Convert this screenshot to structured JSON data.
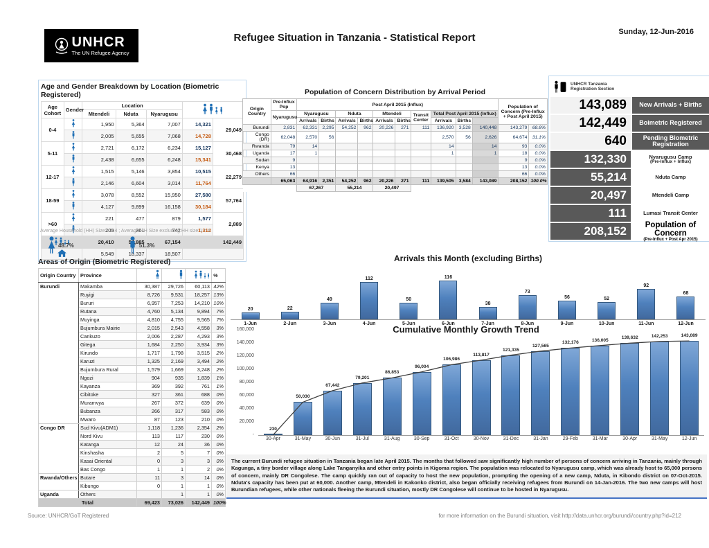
{
  "header": {
    "logo_line1": "UNHCR",
    "logo_line2": "The UN Refugee Agency",
    "title": "Refugee Situation in Tanzania -  Statistical Report",
    "date": "Sunday, 12-Jun-2016"
  },
  "colors": {
    "bar_blue": "#4F81BD",
    "icon_blue": "#1F6FB5",
    "dark_box": "#595959",
    "accent_blue": "#4472C4",
    "shade_gray": "#D9D9D9"
  },
  "age_gender": {
    "title": "Age and Gender Breakdown by Location (Biometric Registered)",
    "col_headers": {
      "age": "Age Cohort",
      "gender": "Gender",
      "location": "Location",
      "mtendeli": "Mtendeli",
      "nduta": "Nduta",
      "nyarugusu": "Nyarugusu"
    },
    "rows": [
      {
        "cohort": "0-4",
        "gender": "female",
        "mtendeli": "1,950",
        "nduta": "5,364",
        "nyarugusu": "7,007",
        "subtotal": "14,321",
        "total": "29,049"
      },
      {
        "cohort": "0-4",
        "gender": "male",
        "mtendeli": "2,005",
        "nduta": "5,655",
        "nyarugusu": "7,068",
        "subtotal": "14,728"
      },
      {
        "cohort": "5-11",
        "gender": "female",
        "mtendeli": "2,721",
        "nduta": "6,172",
        "nyarugusu": "6,234",
        "subtotal": "15,127",
        "total": "30,468"
      },
      {
        "cohort": "5-11",
        "gender": "male",
        "mtendeli": "2,438",
        "nduta": "6,655",
        "nyarugusu": "6,248",
        "subtotal": "15,341"
      },
      {
        "cohort": "12-17",
        "gender": "female",
        "mtendeli": "1,515",
        "nduta": "5,146",
        "nyarugusu": "3,854",
        "subtotal": "10,515",
        "total": "22,279"
      },
      {
        "cohort": "12-17",
        "gender": "male",
        "mtendeli": "2,146",
        "nduta": "6,604",
        "nyarugusu": "3,014",
        "subtotal": "11,764"
      },
      {
        "cohort": "18-59",
        "gender": "female",
        "mtendeli": "3,078",
        "nduta": "8,552",
        "nyarugusu": "15,950",
        "subtotal": "27,580",
        "total": "57,764"
      },
      {
        "cohort": "18-59",
        "gender": "male",
        "mtendeli": "4,127",
        "nduta": "9,899",
        "nyarugusu": "16,158",
        "subtotal": "30,184"
      },
      {
        "cohort": ">60",
        "gender": "female",
        "mtendeli": "221",
        "nduta": "477",
        "nyarugusu": "879",
        "subtotal": "1,577",
        "total": "2,889"
      },
      {
        "cohort": ">60",
        "gender": "male",
        "mtendeli": "209",
        "nduta": "361",
        "nyarugusu": "742",
        "subtotal": "1,312"
      }
    ],
    "totals": {
      "mtendeli": "20,410",
      "nduta": "54,885",
      "nyarugusu": "67,154",
      "grand": "142,449"
    },
    "households": {
      "mtendeli": "5,549",
      "nduta": "18,337",
      "nyarugusu": "18,507"
    },
    "hh_note": "Average Household (HH) Size = 3.4 ; Average HH Size excluding HH size 1 = 4",
    "female_pct": "48.7%",
    "male_pct": "51.3%"
  },
  "arrival_period": {
    "title": "Population of Concern Distribution by  Arrival Period",
    "headers": {
      "origin": "Origin Country",
      "pre": "Pre-Influx Pop",
      "pre_sub": "Nyarugusu",
      "post": "Post April 2015 (Influx)",
      "nyarugusu": "Nyarugusu",
      "nduta": "Nduta",
      "mtendeli": "Mtendeli",
      "transit": "Transit Center",
      "total_post": "Total Post April 2015 (Influx)",
      "arrivals": "Arrivals",
      "births": "Births",
      "poc": "Population of Concern (Pre-Influx + Post April 2015)"
    },
    "rows": [
      [
        "Burundi",
        "2,831",
        "62,331",
        "2,295",
        "54,252",
        "962",
        "20,226",
        "271",
        "111",
        "136,920",
        "3,528",
        "140,448",
        "143,279",
        "68.8%"
      ],
      [
        "Congo (DR)",
        "62,048",
        "2,570",
        "56",
        "",
        "",
        "",
        "",
        "",
        "2,570",
        "56",
        "2,626",
        "64,674",
        "31.1%"
      ],
      [
        "Rwanda",
        "79",
        "14",
        "",
        "",
        "",
        "",
        "",
        "",
        "14",
        "",
        "14",
        "93",
        "0.0%"
      ],
      [
        "Uganda",
        "17",
        "1",
        "",
        "",
        "",
        "",
        "",
        "",
        "1",
        "",
        "1",
        "18",
        "0.0%"
      ],
      [
        "Sudan",
        "9",
        "",
        "",
        "",
        "",
        "",
        "",
        "",
        "",
        "",
        "",
        "9",
        "0.0%"
      ],
      [
        "Kenya",
        "13",
        "",
        "",
        "",
        "",
        "",
        "",
        "",
        "",
        "",
        "",
        "13",
        "0.0%"
      ],
      [
        "Others",
        "66",
        "",
        "",
        "",
        "",
        "",
        "",
        "",
        "",
        "",
        "",
        "66",
        "0.0%"
      ]
    ],
    "total_row": [
      "",
      "65,063",
      "64,916",
      "2,351",
      "54,252",
      "962",
      "20,226",
      "271",
      "111",
      "139,505",
      "3,584",
      "143,089",
      "208,152",
      "100.0%"
    ],
    "camp_totals": {
      "nyarugusu": "67,267",
      "nduta": "55,214",
      "mtendeli": "20,497"
    }
  },
  "key_figures": {
    "org_line1": "UNHCR Tanzania",
    "org_line2": "Registration Section",
    "items": [
      {
        "value": "143,089",
        "label": "New Arrivals + Births",
        "sublabel": "",
        "variant": "top"
      },
      {
        "value": "142,449",
        "label": "Boimetric Registered",
        "sublabel": "",
        "variant": "top"
      },
      {
        "value": "640",
        "label": "Pending Biometric Registration",
        "sublabel": "",
        "variant": "top"
      },
      {
        "value": "132,330",
        "label": "Nyarugusu Camp",
        "sublabel": "(Pre-Influx + Influx)",
        "variant": "camp"
      },
      {
        "value": "55,214",
        "label": "Nduta Camp",
        "sublabel": "",
        "variant": "camp"
      },
      {
        "value": "20,497",
        "label": "Mtendeli Camp",
        "sublabel": "",
        "variant": "camp"
      },
      {
        "value": "111",
        "label": "Lumasi Transit Center",
        "sublabel": "",
        "variant": "camp"
      },
      {
        "value": "208,152",
        "label": "Population of Concern",
        "sublabel": "(Pre-Influx + Post Apr 2015)",
        "variant": "poc"
      }
    ]
  },
  "areas_of_origin": {
    "title": "Areas of Origin (Biometric Registered)",
    "headers": {
      "country": "Origin Country",
      "province": "Province",
      "pct": "%"
    },
    "groups": [
      {
        "country": "Burundi",
        "rows": [
          [
            "Makamba",
            "30,387",
            "29,726",
            "60,113",
            "42%"
          ],
          [
            "Ruyigi",
            "8,726",
            "9,531",
            "18,257",
            "13%"
          ],
          [
            "Bururi",
            "6,957",
            "7,253",
            "14,210",
            "10%"
          ],
          [
            "Rutana",
            "4,760",
            "5,134",
            "9,894",
            "7%"
          ],
          [
            "Muyinga",
            "4,810",
            "4,755",
            "9,565",
            "7%"
          ],
          [
            "Bujumbura Mairie",
            "2,015",
            "2,543",
            "4,558",
            "3%"
          ],
          [
            "Cankuzo",
            "2,006",
            "2,287",
            "4,293",
            "3%"
          ],
          [
            "Gitega",
            "1,684",
            "2,250",
            "3,934",
            "3%"
          ],
          [
            "Kirundo",
            "1,717",
            "1,798",
            "3,515",
            "2%"
          ],
          [
            "Karuzi",
            "1,325",
            "2,169",
            "3,494",
            "2%"
          ],
          [
            "Bujumbura Rural",
            "1,579",
            "1,669",
            "3,248",
            "2%"
          ],
          [
            "Ngozi",
            "904",
            "935",
            "1,839",
            "1%"
          ],
          [
            "Kayanza",
            "369",
            "392",
            "761",
            "1%"
          ],
          [
            "Cibitoke",
            "327",
            "361",
            "688",
            "0%"
          ],
          [
            "Muramvya",
            "267",
            "372",
            "639",
            "0%"
          ],
          [
            "Bubanza",
            "266",
            "317",
            "583",
            "0%"
          ],
          [
            "Mwaro",
            "87",
            "123",
            "210",
            "0%"
          ]
        ]
      },
      {
        "country": "Congo DR",
        "rows": [
          [
            "Sud Kivu(ADM1)",
            "1,118",
            "1,236",
            "2,354",
            "2%"
          ],
          [
            "Nord Kivu",
            "113",
            "117",
            "230",
            "0%"
          ],
          [
            "Katanga",
            "12",
            "24",
            "36",
            "0%"
          ],
          [
            "Kinshasha",
            "2",
            "5",
            "7",
            "0%"
          ],
          [
            "Kasai Oriental",
            "0",
            "3",
            "3",
            "0%"
          ],
          [
            "Bas Congo",
            "1",
            "1",
            "2",
            "0%"
          ]
        ]
      },
      {
        "country": "Rwanda/Others",
        "rows": [
          [
            "Butare",
            "11",
            "3",
            "14",
            "0%"
          ],
          [
            "Kibungo",
            "0",
            "1",
            "1",
            "0%"
          ]
        ]
      },
      {
        "country": "Uganda",
        "rows": [
          [
            "Others",
            "",
            "1",
            "1",
            "0%"
          ]
        ]
      }
    ],
    "total_row": [
      "Total",
      "69,423",
      "73,026",
      "142,449",
      "100%"
    ]
  },
  "chart_data": [
    {
      "type": "bar",
      "title": "Arrivals this Month (excluding Births)",
      "categories": [
        "1-Jun",
        "2-Jun",
        "3-Jun",
        "4-Jun",
        "5-Jun",
        "6-Jun",
        "7-Jun",
        "8-Jun",
        "9-Jun",
        "10-Jun",
        "11-Jun",
        "12-Jun"
      ],
      "values": [
        20,
        22,
        49,
        112,
        50,
        116,
        38,
        73,
        56,
        52,
        92,
        68
      ],
      "xlabel": "",
      "ylabel": "",
      "ylim": [
        0,
        125
      ],
      "grid": false,
      "legend": "none",
      "data_labels": true
    },
    {
      "type": "bar",
      "title": "Cumulative Monthly Growth Trend",
      "categories": [
        "30-Apr",
        "31-May",
        "30-Jun",
        "31-Jul",
        "31-Aug",
        "30-Sep",
        "31-Oct",
        "30-Nov",
        "31-Dec",
        "31-Jan",
        "29-Feb",
        "31-Mar",
        "30-Apr",
        "31-May",
        "12-Jun"
      ],
      "values": [
        230,
        50030,
        67442,
        79201,
        86853,
        96004,
        106986,
        113817,
        121335,
        127565,
        132176,
        136005,
        139632,
        142253,
        143089
      ],
      "labels": [
        "230",
        "50,030",
        "67,442",
        "79,201",
        "86,853",
        "96,004",
        "106,986",
        "113,817",
        "121,335",
        "127,565",
        "132,176",
        "136,005",
        "139,632",
        "142,253",
        "143,089"
      ],
      "yticks": [
        "160,000",
        "140,000",
        "120,000",
        "100,000",
        "80,000",
        "60,000",
        "40,000",
        "20,000",
        "-"
      ],
      "xlabel": "",
      "ylabel": "",
      "ylim": [
        0,
        160000
      ],
      "grid": false,
      "legend": "none",
      "trendline": true,
      "data_labels": true
    }
  ],
  "summary_text": "The current Burundi refugee situation in Tanzania began late April 2015. The months that followed saw significantly high number of persons of concern arriving in Tanzania, mainly through Kagunga, a tiny border village along Lake Tanganyika and other entry points in Kigoma region. The population was relocated to Nyarugusu camp, which was already host to 65,000 persons of concern, mainly DR Congolese. The camp quickly ran out of capacity to host the new population, prompting the opening of a new camp, Nduta, in Kibondo district on 07-Oct-2015. Nduta's capacity has been put at 60,000. Another camp, Mtendeli in Kakonko district, also began officially receiving refugees from Burundi on 14-Jan-2016. The two new camps will host Burundian refugees, while other nationals fleeing the Burundi situation, mostly DR Congolese will continue to be hosted in Nyarugusu.",
  "footer": {
    "source": "Source: UNHCR/GoT Registered",
    "info_prefix": "for more information on the Burundi situation, visit ",
    "url": "http://data.unhcr.org/burundi/country.php?id=212"
  }
}
